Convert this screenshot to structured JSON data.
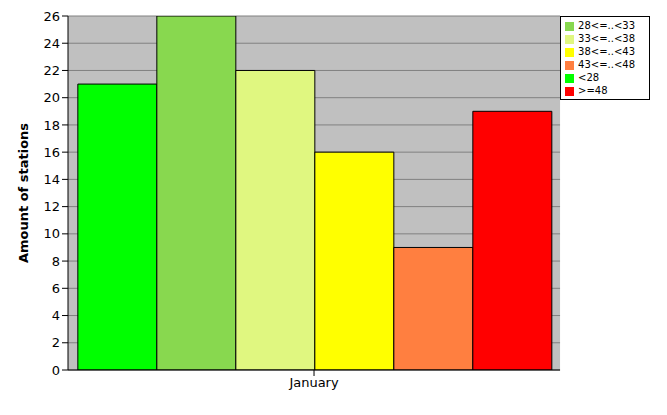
{
  "chart_data": {
    "type": "bar",
    "categories": [
      "January"
    ],
    "y_label": "Amount of stations",
    "series": [
      {
        "name": "<28",
        "color": "#00ff00",
        "values": [
          21
        ]
      },
      {
        "name": "28<=..<33",
        "color": "#88d84f",
        "values": [
          26
        ]
      },
      {
        "name": "33<=..<38",
        "color": "#e0f780",
        "values": [
          22
        ]
      },
      {
        "name": "38<=..<43",
        "color": "#ffff00",
        "values": [
          16
        ]
      },
      {
        "name": "43<=..<48",
        "color": "#ff7f40",
        "values": [
          9
        ]
      },
      {
        "name": ">=48",
        "color": "#ff0000",
        "values": [
          19
        ]
      }
    ],
    "ylim": [
      0,
      26
    ],
    "yticks": [
      0,
      2,
      4,
      6,
      8,
      10,
      12,
      14,
      16,
      18,
      20,
      22,
      24,
      26
    ],
    "grid": true,
    "legend": "top-right"
  }
}
